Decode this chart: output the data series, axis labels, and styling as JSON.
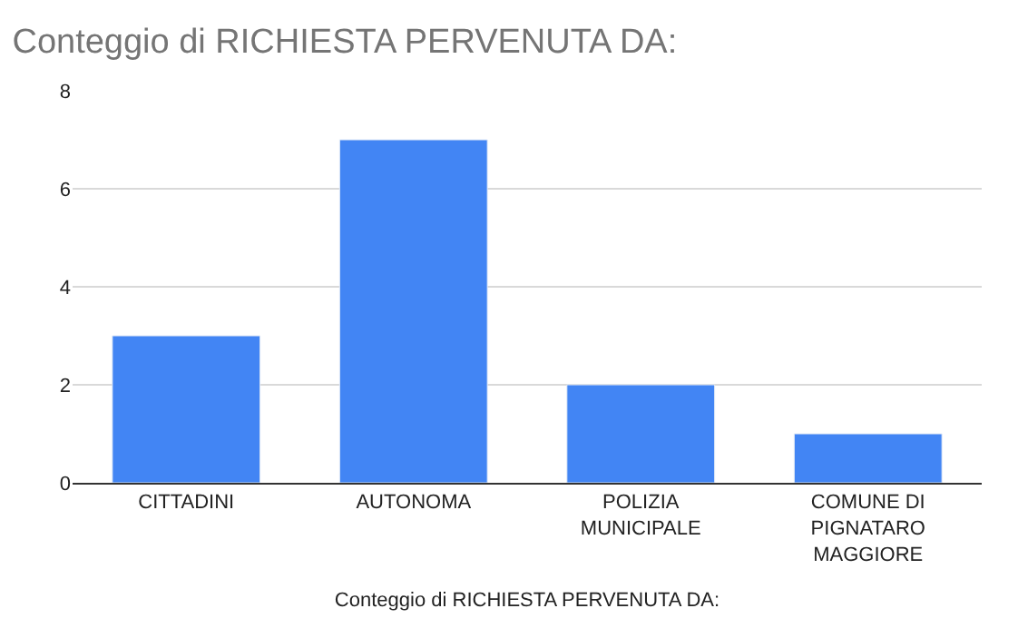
{
  "chart_data": {
    "type": "bar",
    "title": "Conteggio di RICHIESTA PERVENUTA DA:",
    "xlabel": "Conteggio di RICHIESTA PERVENUTA DA:",
    "categories": [
      "CITTADINI",
      "AUTONOMA",
      "POLIZIA MUNICIPALE",
      "COMUNE DI PIGNATARO MAGGIORE"
    ],
    "values": [
      3,
      7,
      2,
      1
    ],
    "color": "#4285f4",
    "ylim": [
      0,
      8
    ],
    "yticks": [
      0,
      2,
      4,
      6,
      8
    ],
    "grid": "y"
  }
}
